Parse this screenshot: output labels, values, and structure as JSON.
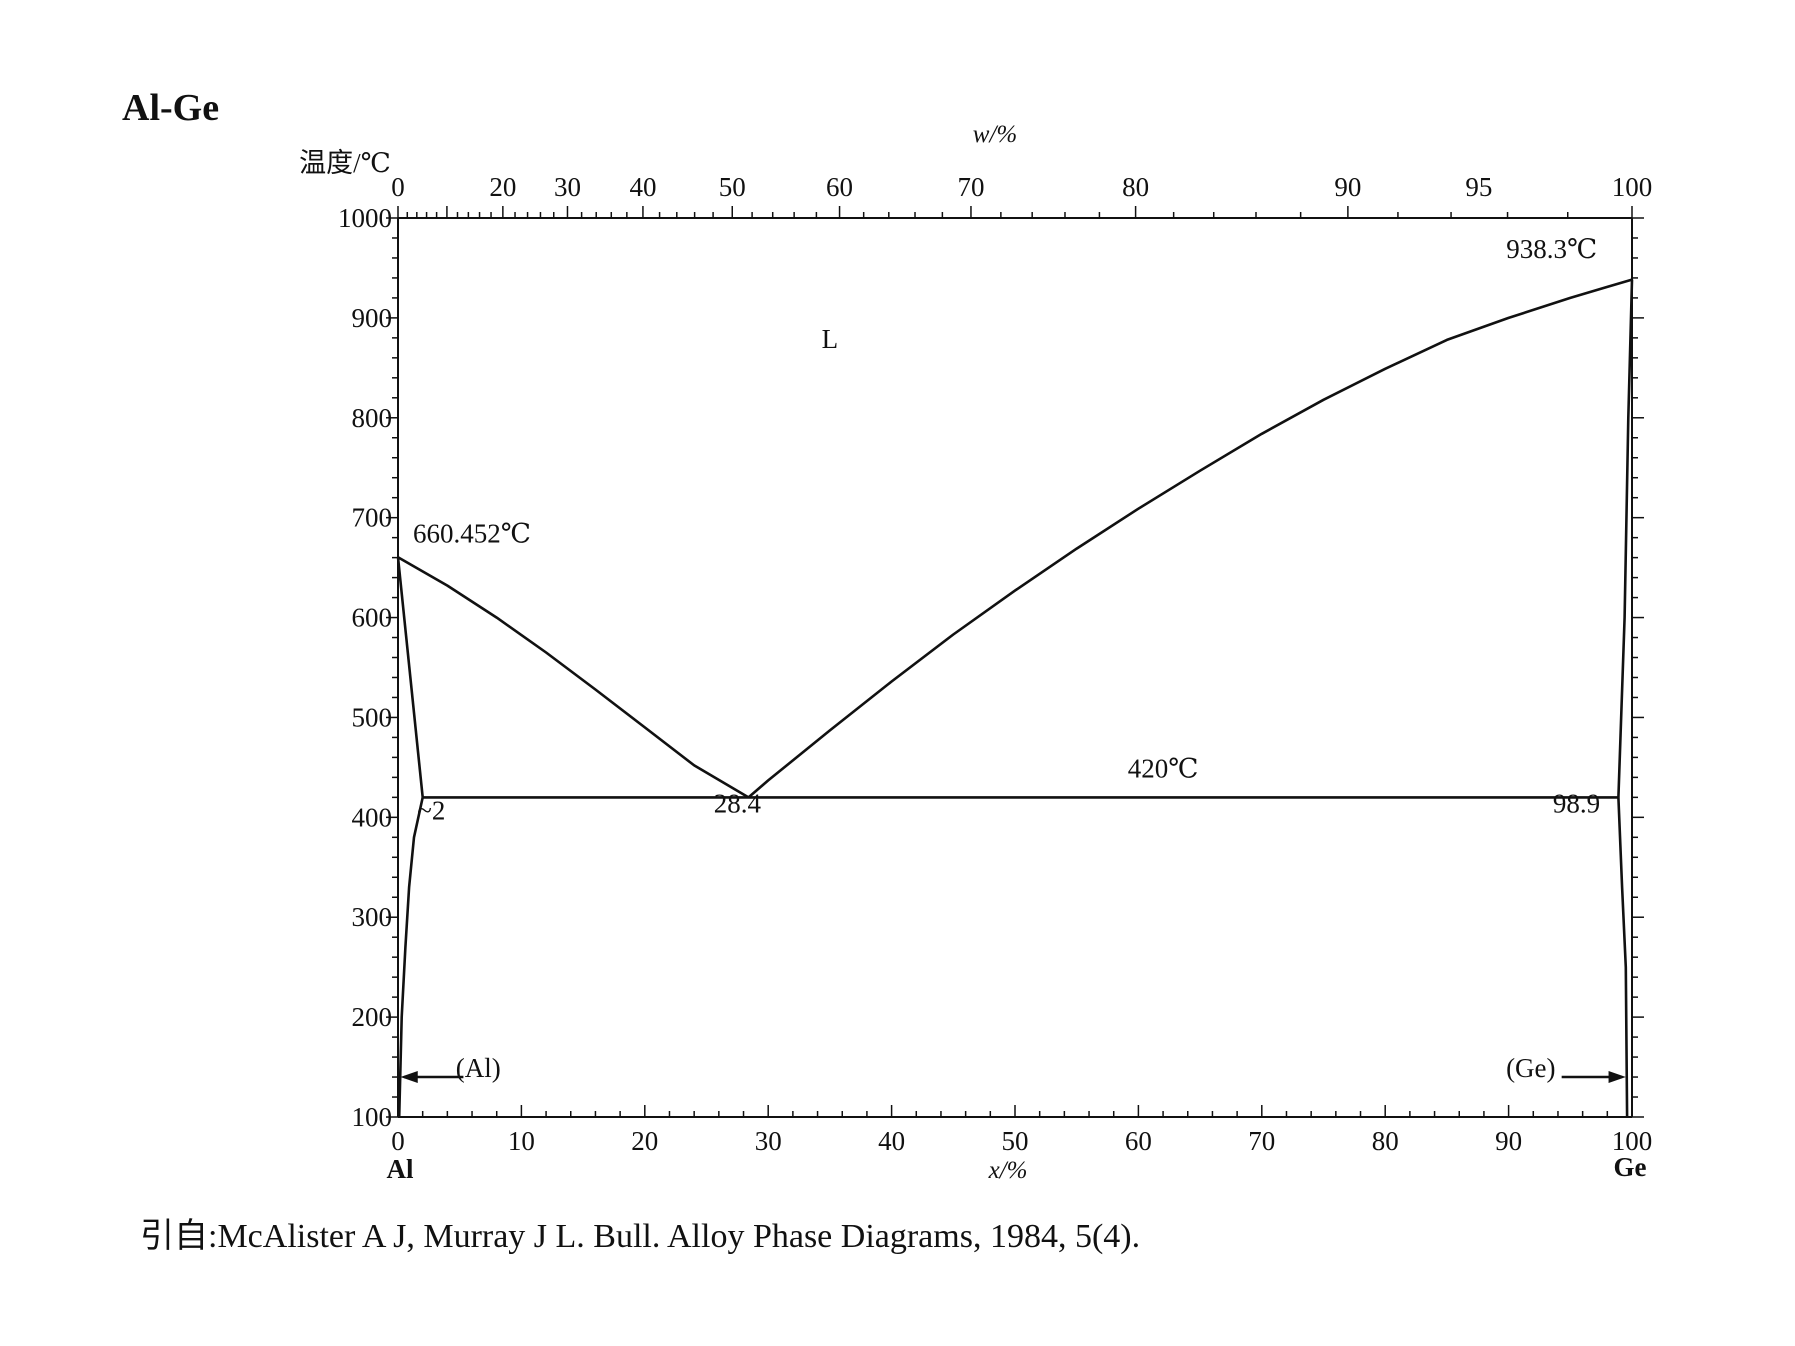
{
  "title": "Al-Ge",
  "citation": "引自:McAlister A J, Murray J L. Bull. Alloy Phase Diagrams, 1984, 5(4).",
  "chart_data": {
    "type": "line",
    "ylabel": "温度/℃",
    "xlabel": "x/%",
    "x2label": "w/%",
    "ylim": [
      100,
      1000
    ],
    "xlim": [
      0,
      100
    ],
    "yticks": [
      100,
      200,
      300,
      400,
      500,
      600,
      700,
      800,
      900,
      1000
    ],
    "xticks": [
      0,
      10,
      20,
      30,
      40,
      50,
      60,
      70,
      80,
      90,
      100
    ],
    "x2ticks": [
      0,
      20,
      30,
      40,
      50,
      60,
      70,
      80,
      90,
      95,
      100
    ],
    "x_end_labels": {
      "left": "Al",
      "right": "Ge"
    },
    "series": [
      {
        "points": [
          [
            0,
            660.452
          ],
          [
            4,
            632
          ],
          [
            8,
            600
          ],
          [
            12,
            565
          ],
          [
            16,
            528
          ],
          [
            20,
            490
          ],
          [
            24,
            452
          ],
          [
            28.4,
            420
          ]
        ]
      },
      {
        "points": [
          [
            28.4,
            420
          ],
          [
            30,
            437
          ],
          [
            35,
            487
          ],
          [
            40,
            536
          ],
          [
            45,
            583
          ],
          [
            50,
            627
          ],
          [
            55,
            669
          ],
          [
            60,
            709
          ],
          [
            65,
            747
          ],
          [
            70,
            784
          ],
          [
            75,
            818
          ],
          [
            80,
            849
          ],
          [
            85,
            878
          ],
          [
            90,
            900
          ],
          [
            95,
            920
          ],
          [
            98,
            931
          ],
          [
            100,
            938.3
          ]
        ]
      },
      {
        "points": [
          [
            2,
            420
          ],
          [
            98.9,
            420
          ]
        ]
      },
      {
        "points": [
          [
            0,
            660.452
          ],
          [
            2,
            420
          ]
        ]
      },
      {
        "points": [
          [
            2,
            420
          ],
          [
            1.3,
            380
          ],
          [
            0.9,
            330
          ],
          [
            0.6,
            270
          ],
          [
            0.3,
            200
          ],
          [
            0.1,
            100
          ]
        ]
      },
      {
        "points": [
          [
            98.9,
            420
          ],
          [
            99.2,
            330
          ],
          [
            99.5,
            250
          ],
          [
            99.6,
            100
          ]
        ]
      },
      {
        "points": [
          [
            98.9,
            420
          ],
          [
            99.4,
            600
          ],
          [
            99.7,
            800
          ],
          [
            100,
            938.3
          ]
        ]
      }
    ],
    "annotations": [
      {
        "text": "L",
        "x": 35,
        "y": 870
      },
      {
        "text": "660.452℃",
        "x": 6,
        "y": 675
      },
      {
        "text": "938.3℃",
        "x": 93.5,
        "y": 960
      },
      {
        "text": "420℃",
        "x": 62,
        "y": 440
      },
      {
        "text": "28.4",
        "x": 27.5,
        "y": 405
      },
      {
        "text": "~2",
        "x": 2.7,
        "y": 398
      },
      {
        "text": "98.9",
        "x": 95.5,
        "y": 405
      },
      {
        "text": "(Al)",
        "x": 6.5,
        "y": 140
      },
      {
        "text": "(Ge)",
        "x": 91.8,
        "y": 140
      }
    ],
    "grid": false
  }
}
